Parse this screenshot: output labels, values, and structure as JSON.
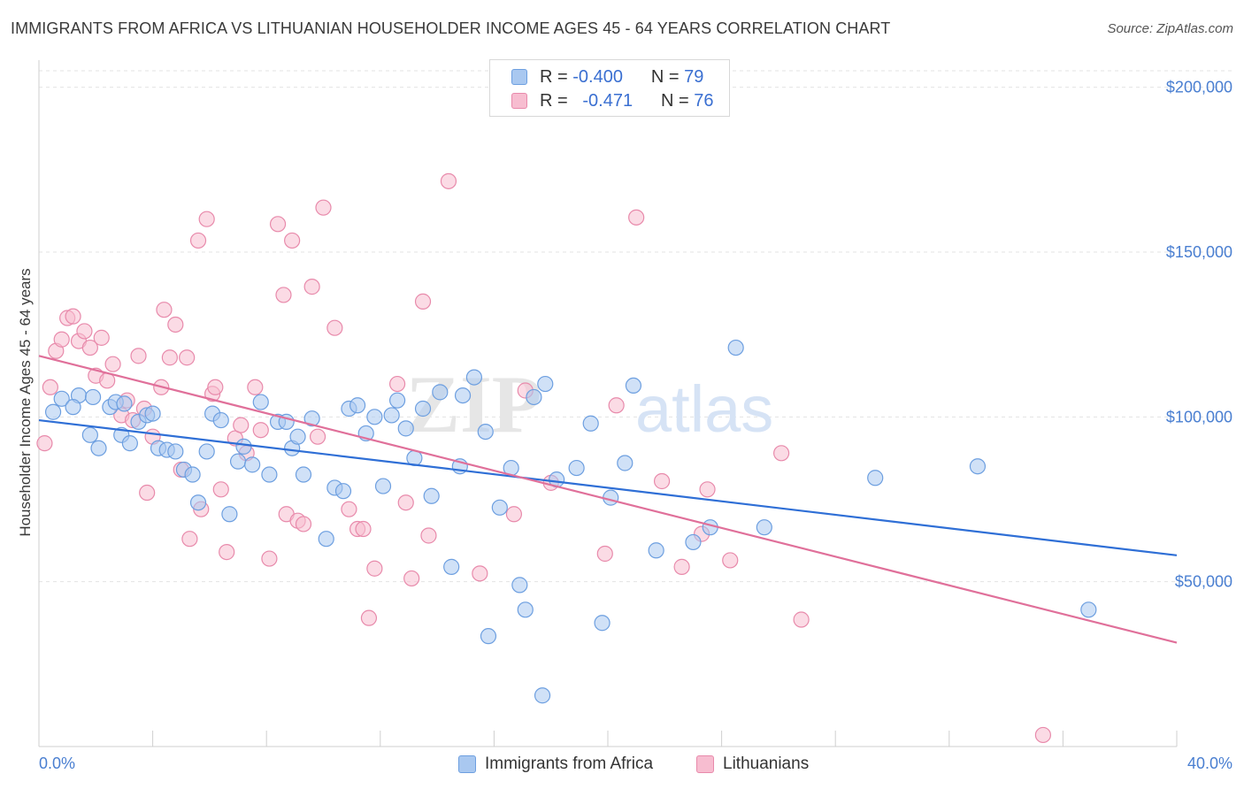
{
  "header": {
    "title": "IMMIGRANTS FROM AFRICA VS LITHUANIAN HOUSEHOLDER INCOME AGES 45 - 64 YEARS CORRELATION CHART",
    "source": "Source: ZipAtlas.com"
  },
  "watermark": {
    "part1": "ZIP",
    "part2": "atlas"
  },
  "legend": {
    "rows": [
      {
        "r_label": "R =",
        "r_value": "-0.400",
        "n_label": "N =",
        "n_value": "79"
      },
      {
        "r_label": "R =",
        "r_value": "-0.471",
        "n_label": "N =",
        "n_value": "76"
      }
    ]
  },
  "colors": {
    "blue_fill": "#a9c8f0",
    "blue_stroke": "#6d9fe0",
    "blue_line": "#2f6fd6",
    "pink_fill": "#f7bdd0",
    "pink_stroke": "#e88aab",
    "pink_line": "#e0709a",
    "tick_text": "#4a7fd1",
    "grid": "#e3e3e3"
  },
  "chart_data": {
    "type": "scatter",
    "title": "IMMIGRANTS FROM AFRICA VS LITHUANIAN HOUSEHOLDER INCOME AGES 45 - 64 YEARS CORRELATION CHART",
    "xlabel": "",
    "ylabel": "Householder Income Ages 45 - 64 years",
    "xlim": [
      0,
      40
    ],
    "ylim": [
      0,
      205000
    ],
    "x_tick_labels": [
      "0.0%",
      "40.0%"
    ],
    "y_tick_values": [
      50000,
      100000,
      150000,
      200000
    ],
    "y_tick_labels": [
      "$50,000",
      "$100,000",
      "$150,000",
      "$200,000"
    ],
    "grid": true,
    "legend_position": "top-center",
    "series": [
      {
        "name": "Immigrants from Africa",
        "r": -0.4,
        "n": 79,
        "trend": {
          "x": [
            0,
            40
          ],
          "y": [
            99000,
            58000
          ]
        },
        "points": [
          [
            0.5,
            101500
          ],
          [
            0.8,
            105500
          ],
          [
            1.4,
            106500
          ],
          [
            1.9,
            106000
          ],
          [
            1.8,
            94500
          ],
          [
            2.1,
            90500
          ],
          [
            2.5,
            103000
          ],
          [
            2.7,
            104500
          ],
          [
            2.9,
            94500
          ],
          [
            3.2,
            92000
          ],
          [
            3.5,
            98500
          ],
          [
            3.8,
            100500
          ],
          [
            4.0,
            101000
          ],
          [
            4.2,
            90500
          ],
          [
            4.5,
            90000
          ],
          [
            4.8,
            89500
          ],
          [
            5.1,
            84000
          ],
          [
            5.4,
            82500
          ],
          [
            5.6,
            74000
          ],
          [
            5.9,
            89500
          ],
          [
            6.1,
            101000
          ],
          [
            6.4,
            99000
          ],
          [
            6.7,
            70500
          ],
          [
            7.0,
            86500
          ],
          [
            7.2,
            91000
          ],
          [
            7.5,
            85500
          ],
          [
            7.8,
            104500
          ],
          [
            8.1,
            82500
          ],
          [
            8.4,
            98500
          ],
          [
            8.7,
            98500
          ],
          [
            8.9,
            90500
          ],
          [
            9.1,
            94000
          ],
          [
            9.3,
            82500
          ],
          [
            9.6,
            99500
          ],
          [
            10.1,
            63000
          ],
          [
            10.4,
            78500
          ],
          [
            10.7,
            77500
          ],
          [
            10.9,
            102500
          ],
          [
            11.2,
            103500
          ],
          [
            11.5,
            95000
          ],
          [
            11.8,
            100000
          ],
          [
            12.1,
            79000
          ],
          [
            12.4,
            100500
          ],
          [
            12.6,
            105000
          ],
          [
            12.9,
            96500
          ],
          [
            13.2,
            87500
          ],
          [
            13.5,
            102500
          ],
          [
            13.8,
            76000
          ],
          [
            14.1,
            107500
          ],
          [
            14.5,
            54500
          ],
          [
            14.8,
            85000
          ],
          [
            14.9,
            106500
          ],
          [
            15.3,
            112000
          ],
          [
            15.7,
            95500
          ],
          [
            15.8,
            33500
          ],
          [
            16.2,
            72500
          ],
          [
            16.6,
            84500
          ],
          [
            16.9,
            49000
          ],
          [
            17.1,
            41500
          ],
          [
            17.4,
            106000
          ],
          [
            17.8,
            110000
          ],
          [
            17.7,
            15500
          ],
          [
            18.2,
            81000
          ],
          [
            18.9,
            84500
          ],
          [
            19.4,
            98000
          ],
          [
            19.8,
            37500
          ],
          [
            20.1,
            75500
          ],
          [
            20.6,
            86000
          ],
          [
            20.9,
            109500
          ],
          [
            21.7,
            59500
          ],
          [
            23.0,
            62000
          ],
          [
            23.6,
            66500
          ],
          [
            24.5,
            121000
          ],
          [
            25.5,
            66500
          ],
          [
            29.4,
            81500
          ],
          [
            33.0,
            85000
          ],
          [
            36.9,
            41500
          ],
          [
            1.2,
            103000
          ],
          [
            3.0,
            104000
          ]
        ]
      },
      {
        "name": "Lithuanians",
        "r": -0.471,
        "n": 76,
        "trend": {
          "x": [
            0,
            40
          ],
          "y": [
            118500,
            31500
          ]
        },
        "points": [
          [
            0.2,
            92000
          ],
          [
            0.4,
            109000
          ],
          [
            0.6,
            120000
          ],
          [
            0.8,
            123500
          ],
          [
            1.0,
            130000
          ],
          [
            1.2,
            130500
          ],
          [
            1.4,
            123000
          ],
          [
            1.6,
            126000
          ],
          [
            1.8,
            121000
          ],
          [
            2.0,
            112500
          ],
          [
            2.2,
            124000
          ],
          [
            2.4,
            111000
          ],
          [
            2.6,
            116000
          ],
          [
            2.9,
            100500
          ],
          [
            3.1,
            105000
          ],
          [
            3.3,
            99000
          ],
          [
            3.5,
            118500
          ],
          [
            3.7,
            102500
          ],
          [
            3.8,
            77000
          ],
          [
            4.0,
            94000
          ],
          [
            4.3,
            109000
          ],
          [
            4.4,
            132500
          ],
          [
            4.6,
            118000
          ],
          [
            4.8,
            128000
          ],
          [
            5.0,
            84000
          ],
          [
            5.2,
            118000
          ],
          [
            5.3,
            63000
          ],
          [
            5.6,
            153500
          ],
          [
            5.7,
            72000
          ],
          [
            5.9,
            160000
          ],
          [
            6.1,
            107000
          ],
          [
            6.2,
            109000
          ],
          [
            6.4,
            78000
          ],
          [
            6.6,
            59000
          ],
          [
            6.9,
            93500
          ],
          [
            7.1,
            97500
          ],
          [
            7.3,
            89000
          ],
          [
            7.6,
            109000
          ],
          [
            7.8,
            96000
          ],
          [
            8.1,
            57000
          ],
          [
            8.4,
            158500
          ],
          [
            8.6,
            137000
          ],
          [
            8.7,
            70500
          ],
          [
            8.9,
            153500
          ],
          [
            9.1,
            68500
          ],
          [
            9.3,
            67500
          ],
          [
            9.6,
            139500
          ],
          [
            9.8,
            94000
          ],
          [
            10.0,
            163500
          ],
          [
            10.4,
            127000
          ],
          [
            10.9,
            72000
          ],
          [
            11.2,
            66000
          ],
          [
            11.4,
            66000
          ],
          [
            11.6,
            39000
          ],
          [
            11.8,
            54000
          ],
          [
            12.6,
            110000
          ],
          [
            12.9,
            74000
          ],
          [
            13.1,
            51000
          ],
          [
            13.5,
            135000
          ],
          [
            13.7,
            64000
          ],
          [
            14.4,
            171500
          ],
          [
            15.5,
            52500
          ],
          [
            16.7,
            70500
          ],
          [
            17.1,
            108000
          ],
          [
            18.0,
            80000
          ],
          [
            19.9,
            58500
          ],
          [
            20.3,
            103500
          ],
          [
            21.0,
            160500
          ],
          [
            21.9,
            80500
          ],
          [
            22.6,
            54500
          ],
          [
            23.3,
            64500
          ],
          [
            23.5,
            78000
          ],
          [
            24.3,
            56500
          ],
          [
            26.1,
            89000
          ],
          [
            26.8,
            38500
          ],
          [
            35.3,
            3500
          ]
        ]
      }
    ]
  },
  "bottom_legend": [
    {
      "label": "Immigrants from Africa"
    },
    {
      "label": "Lithuanians"
    }
  ]
}
